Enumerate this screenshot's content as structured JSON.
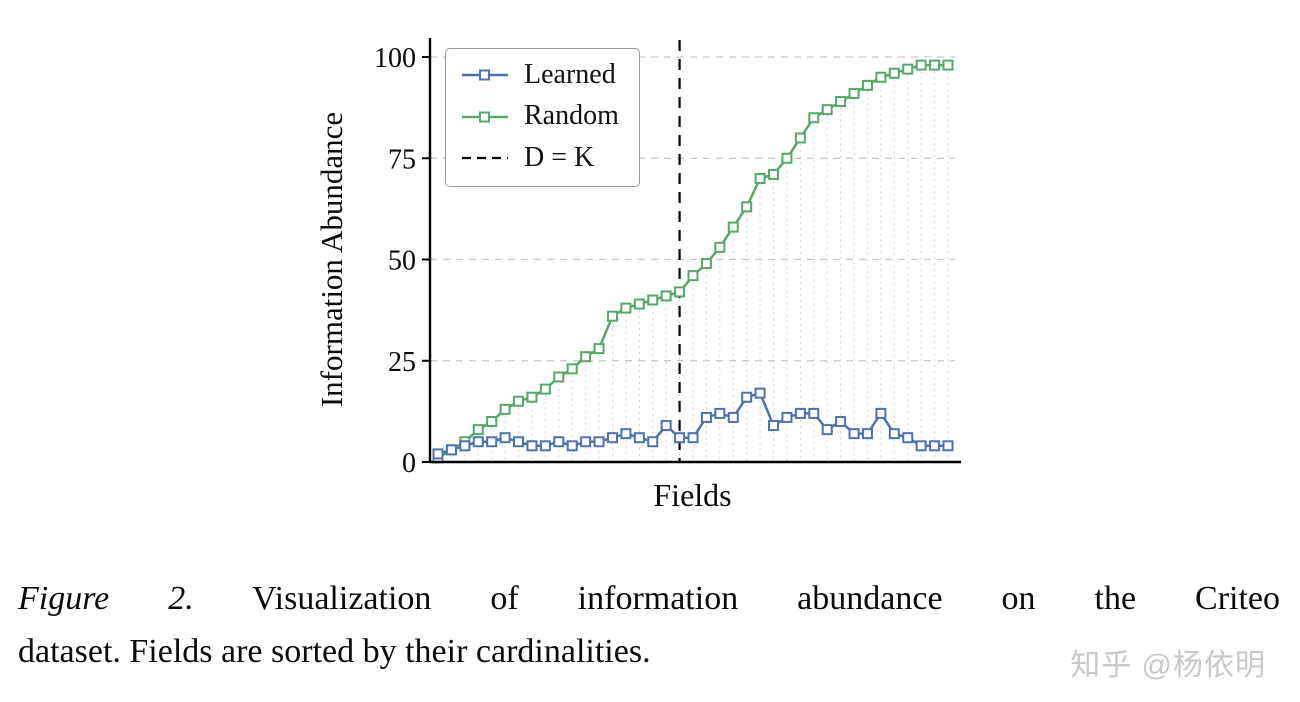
{
  "figure": {
    "caption_label": "Figure 2.",
    "caption_line1": "Visualization of information abundance on the Criteo",
    "caption_line2": "dataset. Fields are sorted by their cardinalities."
  },
  "watermark": {
    "text": "知乎 @杨依明"
  },
  "chart_data": {
    "type": "line",
    "title": "",
    "xlabel": "Fields",
    "ylabel": "Information Abundance",
    "ylim": [
      0,
      100
    ],
    "yticks": [
      0,
      25,
      50,
      75,
      100
    ],
    "x_tick_labels": "none (fields unlabeled)",
    "grid": "horizontal dashed gridlines at yticks; light dashed vertical drop lines at each field",
    "legend_position": "upper-left inside plot, boxed",
    "dashed_line": {
      "label": "D = K",
      "at_index": 18,
      "color": "#000000",
      "style": "dashed-vertical"
    },
    "colors": {
      "learned": "#4c72b0",
      "random": "#55a868",
      "gridline": "#c6c6c6",
      "dropline": "#d2d2d2",
      "axis": "#000000"
    },
    "categories_note": "39 Criteo fields sorted by cardinality",
    "series": [
      {
        "name": "Learned",
        "color": "#4c72b0",
        "marker": "square",
        "values": [
          2,
          3,
          4,
          5,
          5,
          6,
          5,
          4,
          4,
          5,
          4,
          5,
          5,
          6,
          7,
          6,
          5,
          9,
          6,
          6,
          11,
          12,
          11,
          16,
          17,
          9,
          11,
          12,
          12,
          8,
          10,
          7,
          7,
          12,
          7,
          6,
          4,
          4,
          4
        ]
      },
      {
        "name": "Random",
        "color": "#55a868",
        "marker": "square",
        "values": [
          1,
          3,
          5,
          8,
          10,
          13,
          15,
          16,
          18,
          21,
          23,
          26,
          28,
          36,
          38,
          39,
          40,
          41,
          42,
          46,
          49,
          53,
          58,
          63,
          70,
          71,
          75,
          80,
          85,
          87,
          89,
          91,
          93,
          95,
          96,
          97,
          98,
          98,
          98
        ]
      }
    ]
  }
}
